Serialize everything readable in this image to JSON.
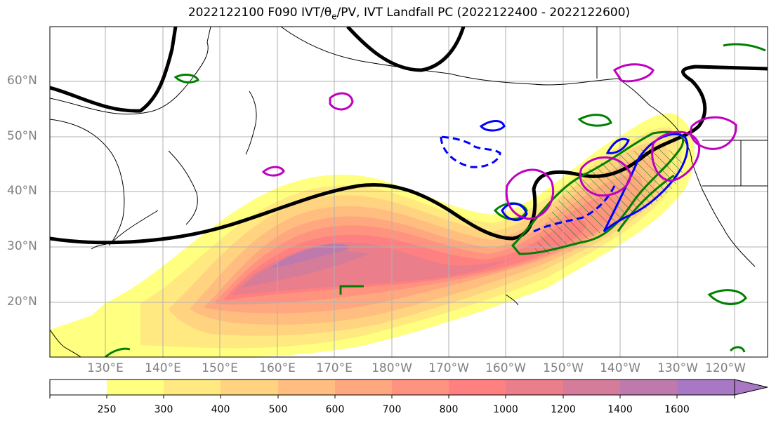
{
  "title": {
    "prefix": "2022122100 F090 IVT/",
    "theta": "θ",
    "theta_sub": "e",
    "suffix": "/PV, IVT Landfall PC (2022122400 - 2022122600)"
  },
  "lat_labels": [
    "60°N",
    "50°N",
    "40°N",
    "30°N",
    "20°N"
  ],
  "lon_labels": [
    "130°E",
    "140°E",
    "150°E",
    "160°E",
    "170°E",
    "180°W",
    "170°W",
    "160°W",
    "150°W",
    "140°W",
    "130°W",
    "120°W"
  ],
  "colorbar": {
    "ticks": [
      "250",
      "300",
      "400",
      "500",
      "600",
      "700",
      "800",
      "1000",
      "1200",
      "1400",
      "1600"
    ],
    "colors": [
      "#ffffff",
      "#ffff80",
      "#ffe980",
      "#ffd380",
      "#ffbe80",
      "#ffa87f",
      "#ff9380",
      "#ff8080",
      "#ea7e8a",
      "#d47c9a",
      "#be7aad",
      "#a878c4"
    ]
  },
  "colors": {
    "pv_contour": "#000000",
    "theta_e_contour": "#008000",
    "ivt_pc_positive": "#0000ff",
    "pv_anomaly": "#c000c0",
    "hatch": "#008000"
  }
}
